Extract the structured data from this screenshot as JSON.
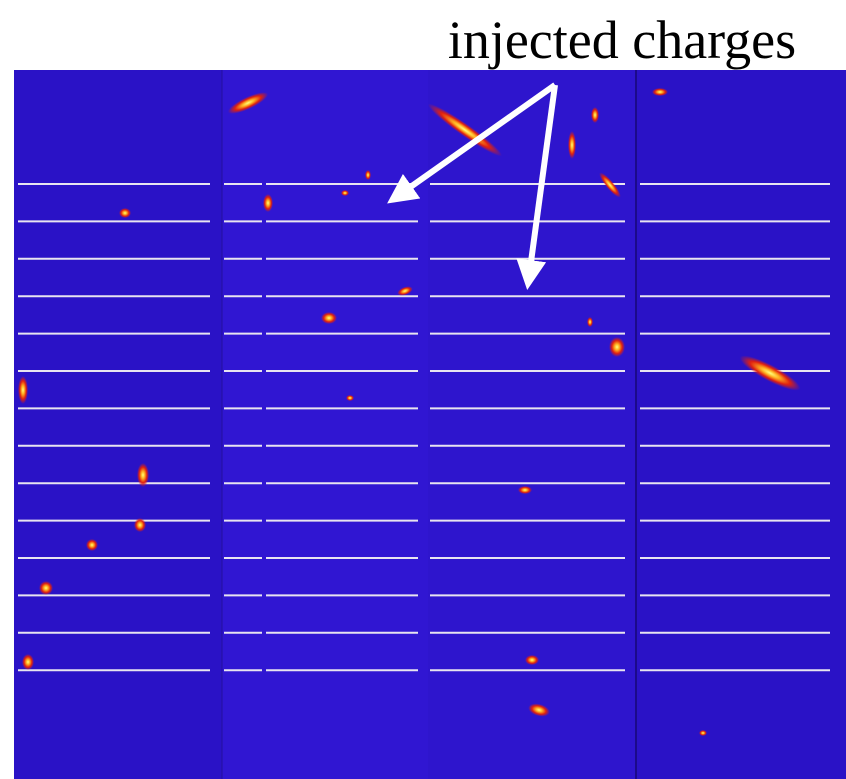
{
  "annotation": {
    "label": "injected charges"
  }
}
